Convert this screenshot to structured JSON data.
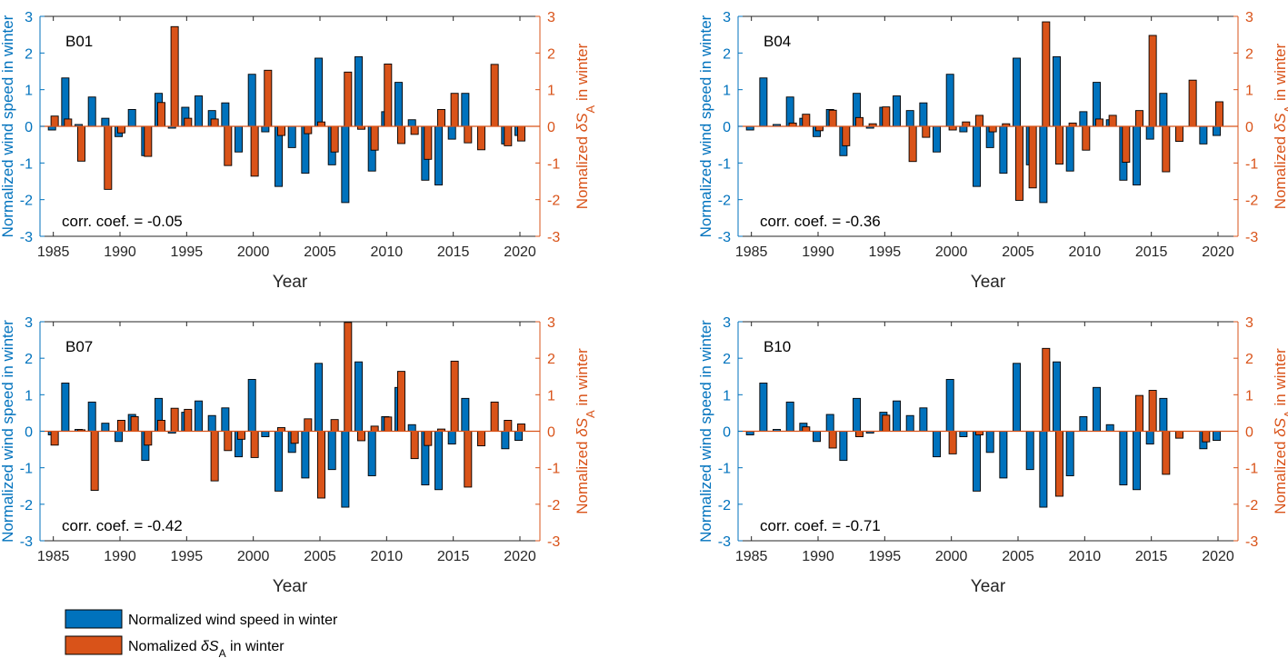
{
  "colors": {
    "wind": "#0072BD",
    "salinity": "#D95319",
    "axis": "#262626"
  },
  "chart_data": {
    "type": "bar",
    "x_label": "Year",
    "x_range": [
      1984,
      2021.5
    ],
    "x_ticks": [
      "1985",
      "1990",
      "1995",
      "2000",
      "2005",
      "2010",
      "2015",
      "2020"
    ],
    "y_range": [
      -3,
      3
    ],
    "y_ticks": [
      "-3",
      "-2",
      "-1",
      "0",
      "1",
      "2",
      "3"
    ],
    "y_left_label": "Normalized wind speed in winter",
    "y_right_label": {
      "prefix": "Nomalized ",
      "symbol": "δS",
      "subscript": "A",
      "suffix": " in winter"
    },
    "years": [
      1985,
      1986,
      1987,
      1988,
      1989,
      1990,
      1991,
      1992,
      1993,
      1994,
      1995,
      1996,
      1997,
      1998,
      1999,
      2000,
      2001,
      2002,
      2003,
      2004,
      2005,
      2006,
      2007,
      2008,
      2009,
      2010,
      2011,
      2012,
      2013,
      2014,
      2015,
      2016,
      2017,
      2018,
      2019,
      2020
    ],
    "wind": [
      -0.1,
      1.32,
      0.05,
      0.8,
      0.22,
      -0.28,
      0.46,
      -0.8,
      0.9,
      -0.05,
      0.52,
      0.83,
      0.43,
      0.64,
      -0.7,
      1.42,
      -0.15,
      -1.64,
      -0.58,
      -1.28,
      1.86,
      -1.05,
      -2.08,
      1.9,
      -1.22,
      0.4,
      1.2,
      0.18,
      -1.47,
      -1.6,
      -0.35,
      0.9,
      0.0,
      0.0,
      -0.48,
      -0.25
    ],
    "legend": [
      {
        "series": "wind",
        "label": "Normalized wind speed in winter"
      },
      {
        "series": "salinity",
        "prefix": "Nomalized ",
        "symbol": "δS",
        "subscript": "A",
        "suffix": " in winter"
      }
    ],
    "panels": [
      {
        "label": "B01",
        "corr": "corr. coef. = -0.05",
        "salinity": [
          0.28,
          0.2,
          -0.95,
          0.0,
          -1.72,
          -0.18,
          0.0,
          -0.82,
          0.65,
          2.72,
          0.22,
          0.0,
          0.2,
          -1.07,
          0.0,
          -1.36,
          1.53,
          -0.25,
          0.0,
          -0.2,
          0.12,
          -0.7,
          1.48,
          -0.08,
          -0.65,
          1.7,
          -0.47,
          -0.22,
          -0.9,
          0.46,
          0.9,
          -0.45,
          -0.64,
          1.69,
          -0.53,
          -0.4
        ]
      },
      {
        "label": "B04",
        "corr": "corr. coef. = -0.36",
        "salinity": [
          0.0,
          0.0,
          0.0,
          0.09,
          0.33,
          -0.12,
          0.44,
          -0.53,
          0.24,
          0.07,
          0.53,
          0.0,
          -0.96,
          -0.3,
          0.0,
          -0.1,
          0.12,
          0.3,
          -0.15,
          0.07,
          -2.02,
          -1.68,
          2.85,
          -1.03,
          0.09,
          -0.65,
          0.2,
          0.3,
          -0.98,
          0.43,
          2.48,
          -1.24,
          -0.41,
          1.26,
          0.0,
          0.67
        ]
      },
      {
        "label": "B07",
        "corr": "corr. coef. = -0.42",
        "salinity": [
          -0.38,
          0.0,
          0.04,
          -1.62,
          0.0,
          0.3,
          0.4,
          -0.38,
          0.3,
          0.63,
          0.6,
          0.0,
          -1.36,
          -0.53,
          -0.22,
          -0.72,
          0.0,
          0.1,
          -0.33,
          0.34,
          -1.83,
          0.32,
          2.98,
          -0.26,
          0.14,
          0.39,
          1.64,
          -0.75,
          -0.39,
          0.06,
          1.92,
          -1.53,
          -0.4,
          0.8,
          0.3,
          0.2
        ]
      },
      {
        "label": "B10",
        "corr": "corr. coef. = -0.71",
        "salinity": [
          0.0,
          0.0,
          0.0,
          0.0,
          0.12,
          0.0,
          -0.46,
          0.0,
          -0.15,
          0.0,
          0.44,
          0.0,
          0.0,
          0.0,
          0.0,
          -0.62,
          0.0,
          -0.1,
          0.0,
          0.0,
          0.0,
          0.0,
          2.27,
          -1.78,
          0.0,
          0.0,
          0.0,
          0.0,
          0.0,
          0.98,
          1.12,
          -1.18,
          -0.19,
          0.0,
          -0.29,
          0.0
        ]
      }
    ]
  }
}
